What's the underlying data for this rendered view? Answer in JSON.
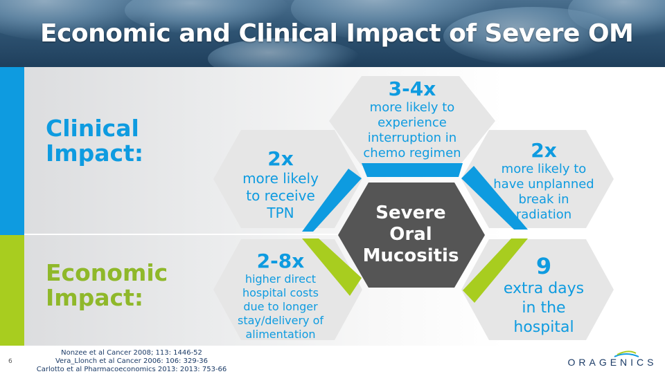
{
  "slide": {
    "title": "Economic and Clinical Impact of Severe OM",
    "page_number": "6"
  },
  "labels": {
    "clinical_line1": "Clinical",
    "clinical_line2": "Impact:",
    "economic_line1": "Economic",
    "economic_line2": "Impact:"
  },
  "center": {
    "line1": "Severe",
    "line2": "Oral",
    "line3": "Mucositis"
  },
  "hexes": {
    "top": {
      "value": "3-4x",
      "lines": [
        "more likely to",
        "experience",
        "interruption in",
        "chemo regimen"
      ]
    },
    "left": {
      "value": "2x",
      "lines": [
        "more likely",
        "to receive",
        "TPN"
      ]
    },
    "right": {
      "value": "2x",
      "lines": [
        "more likely to",
        "have unplanned",
        "break in",
        "radiation"
      ]
    },
    "bottom_left": {
      "value": "2-8x",
      "lines": [
        "higher direct",
        "hospital costs",
        "due to longer",
        "stay/delivery of",
        "alimentation"
      ]
    },
    "bottom_right": {
      "value": "9",
      "lines": [
        "extra days",
        "in the",
        "hospital"
      ]
    }
  },
  "references": [
    "Nonzee et al Cancer 2008; 113: 1446-52",
    "Vera_Llonch et al Cancer 2006: 106: 329-36",
    "Carlotto et al Pharmacoeconomics 2013: 2013: 753-66"
  ],
  "logo": {
    "text": "ORAGENICS"
  },
  "colors": {
    "clinical_blue": "#0e9be0",
    "economic_green": "#a8cd1f",
    "center_hex": "#555555",
    "hex_fill": "#e6e6e6"
  }
}
